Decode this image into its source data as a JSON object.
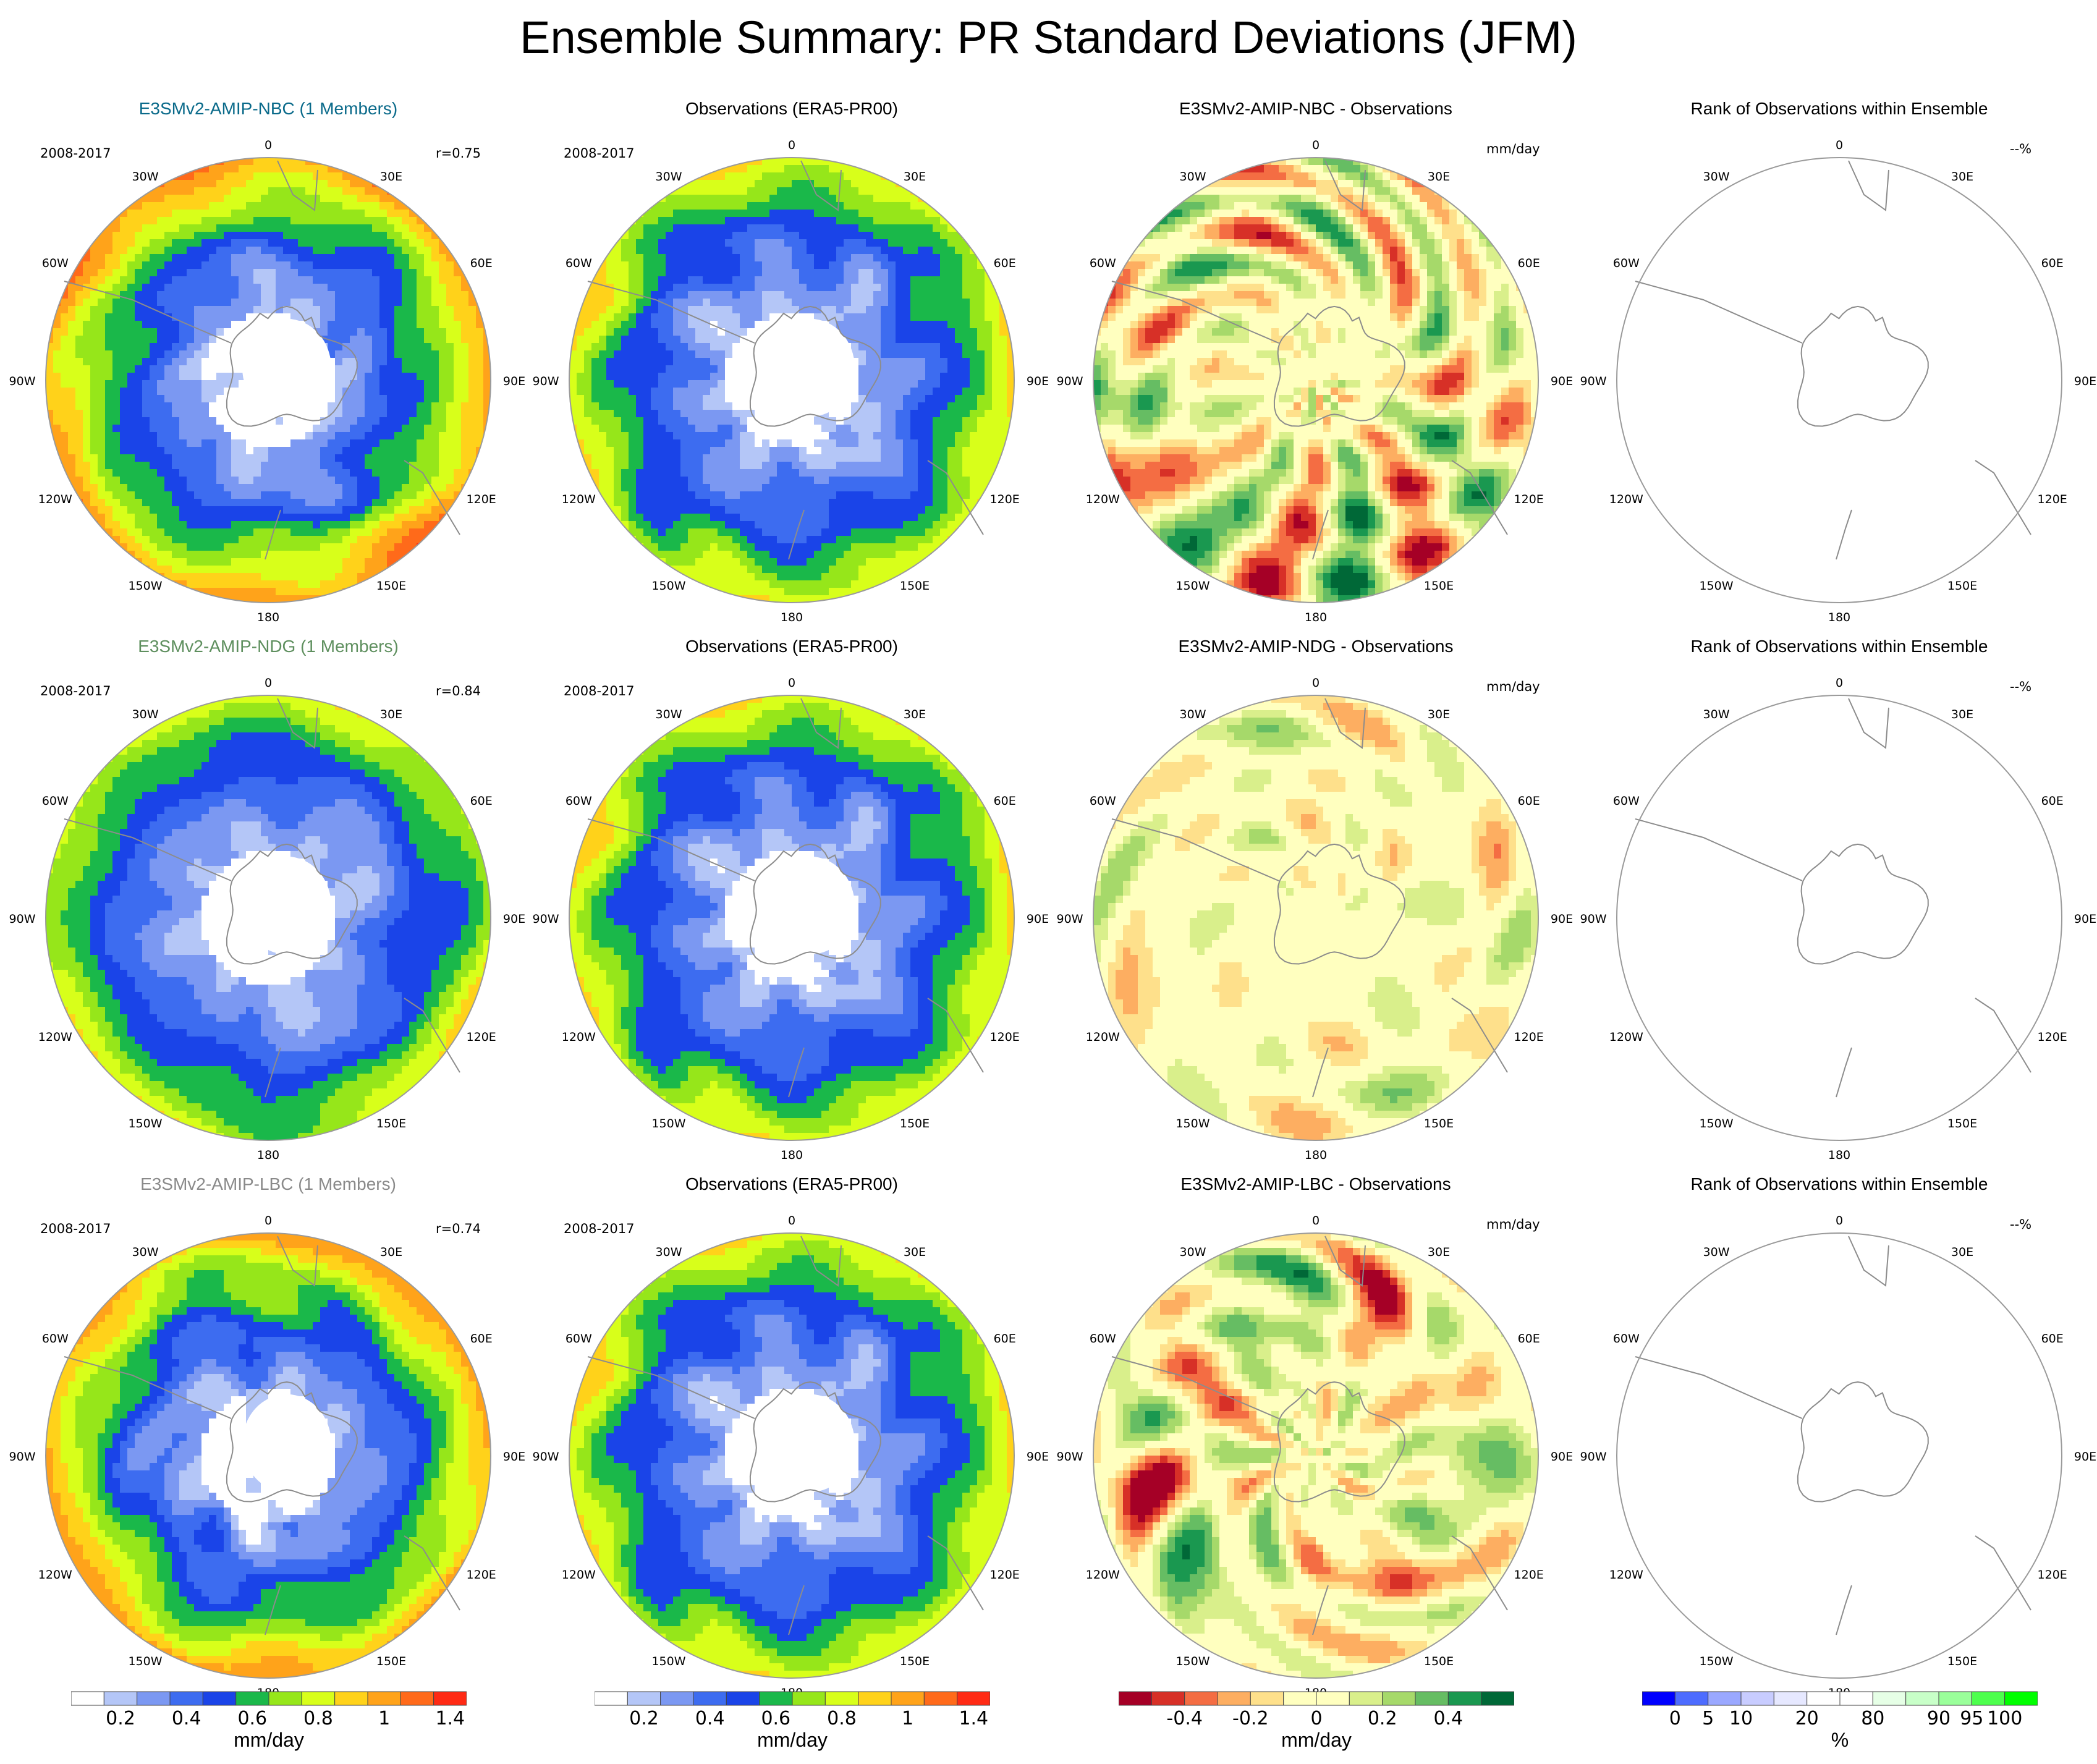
{
  "title": "Ensemble Summary: PR Standard Deviations (JFM)",
  "colors": {
    "model_title": [
      "#0a6a8a",
      "#5e8f5e",
      "#8a8a8a"
    ],
    "std_levels": [
      "#ffffff",
      "#b4c6f7",
      "#7b98f2",
      "#3d6cf0",
      "#1a44e8",
      "#1ab84a",
      "#96e61a",
      "#d8ff1a",
      "#ffd21a",
      "#ffa31a",
      "#ff6a1a",
      "#ff2a14"
    ],
    "diff_levels": [
      "#a50026",
      "#d73027",
      "#f46d43",
      "#fdae61",
      "#fee08b",
      "#ffffbf",
      "#ffffbf",
      "#d9ef8b",
      "#a6d96a",
      "#66bd63",
      "#1a9850",
      "#006837"
    ],
    "rank_levels": [
      "#0000ff",
      "#4d6cff",
      "#9aa8ff",
      "#c8ccff",
      "#e6e8ff",
      "#ffffff",
      "#ffffff",
      "#e6ffe6",
      "#c8ffc8",
      "#9aff9a",
      "#4dff4d",
      "#00ff00"
    ]
  },
  "chart_data": [
    {
      "type": "heatmap",
      "row": 0,
      "col": 0,
      "title": "E3SMv2-AMIP-NBC (1 Members)",
      "period": "2008-2017",
      "corr": "r=0.75",
      "units": "",
      "projection": "south-polar-stereographic",
      "fill": "std",
      "intensity": 0.95,
      "seed": 11
    },
    {
      "type": "heatmap",
      "row": 0,
      "col": 1,
      "title": "Observations (ERA5-PR00)",
      "period": "2008-2017",
      "corr": "",
      "units": "",
      "projection": "south-polar-stereographic",
      "fill": "std",
      "intensity": 0.75,
      "seed": 23
    },
    {
      "type": "heatmap",
      "row": 0,
      "col": 2,
      "title": "E3SMv2-AMIP-NBC - Observations",
      "period": "",
      "corr": "",
      "units": "mm/day",
      "projection": "south-polar-stereographic",
      "fill": "diff",
      "intensity": 0.6,
      "seed": 37
    },
    {
      "type": "heatmap",
      "row": 0,
      "col": 3,
      "title": "Rank of Observations within Ensemble",
      "period": "",
      "corr": "",
      "units": "--%",
      "projection": "south-polar-stereographic",
      "fill": "none",
      "intensity": 0,
      "seed": 0
    },
    {
      "type": "heatmap",
      "row": 1,
      "col": 0,
      "title": "E3SMv2-AMIP-NDG (1 Members)",
      "period": "2008-2017",
      "corr": "r=0.84",
      "units": "",
      "projection": "south-polar-stereographic",
      "fill": "std",
      "intensity": 0.7,
      "seed": 41
    },
    {
      "type": "heatmap",
      "row": 1,
      "col": 1,
      "title": "Observations (ERA5-PR00)",
      "period": "2008-2017",
      "corr": "",
      "units": "",
      "projection": "south-polar-stereographic",
      "fill": "std",
      "intensity": 0.75,
      "seed": 23
    },
    {
      "type": "heatmap",
      "row": 1,
      "col": 2,
      "title": "E3SMv2-AMIP-NDG - Observations",
      "period": "",
      "corr": "",
      "units": "mm/day",
      "projection": "south-polar-stereographic",
      "fill": "diff",
      "intensity": 0.3,
      "seed": 53
    },
    {
      "type": "heatmap",
      "row": 1,
      "col": 3,
      "title": "Rank of Observations within Ensemble",
      "period": "",
      "corr": "",
      "units": "--%",
      "projection": "south-polar-stereographic",
      "fill": "none",
      "intensity": 0,
      "seed": 0
    },
    {
      "type": "heatmap",
      "row": 2,
      "col": 0,
      "title": "E3SMv2-AMIP-LBC (1 Members)",
      "period": "2008-2017",
      "corr": "r=0.74",
      "units": "",
      "projection": "south-polar-stereographic",
      "fill": "std",
      "intensity": 0.92,
      "seed": 67
    },
    {
      "type": "heatmap",
      "row": 2,
      "col": 1,
      "title": "Observations (ERA5-PR00)",
      "period": "2008-2017",
      "corr": "",
      "units": "",
      "projection": "south-polar-stereographic",
      "fill": "std",
      "intensity": 0.75,
      "seed": 23
    },
    {
      "type": "heatmap",
      "row": 2,
      "col": 2,
      "title": "E3SMv2-AMIP-LBC - Observations",
      "period": "",
      "corr": "",
      "units": "mm/day",
      "projection": "south-polar-stereographic",
      "fill": "diff",
      "intensity": 0.65,
      "seed": 79
    },
    {
      "type": "heatmap",
      "row": 2,
      "col": 3,
      "title": "Rank of Observations within Ensemble",
      "period": "",
      "corr": "",
      "units": "--%",
      "projection": "south-polar-stereographic",
      "fill": "none",
      "intensity": 0,
      "seed": 0
    }
  ],
  "lon_labels": [
    "0",
    "30E",
    "60E",
    "90E",
    "120E",
    "150E",
    "180",
    "150W",
    "120W",
    "90W",
    "60W",
    "30W"
  ],
  "legends": [
    {
      "id": "std-a",
      "colors": "std_levels",
      "labels": [
        "0.2",
        "0.4",
        "0.6",
        "0.8",
        "1",
        "1.4"
      ],
      "label_slots": [
        1.5,
        3.5,
        5.5,
        7.5,
        9.5,
        11.5
      ],
      "unit": "mm/day"
    },
    {
      "id": "std-b",
      "colors": "std_levels",
      "labels": [
        "0.2",
        "0.4",
        "0.6",
        "0.8",
        "1",
        "1.4"
      ],
      "label_slots": [
        1.5,
        3.5,
        5.5,
        7.5,
        9.5,
        11.5
      ],
      "unit": "mm/day"
    },
    {
      "id": "diff",
      "colors": "diff_levels",
      "labels": [
        "-0.4",
        "-0.2",
        "0",
        "0.2",
        "0.4"
      ],
      "label_slots": [
        2,
        4,
        6,
        8,
        10
      ],
      "unit": "mm/day"
    },
    {
      "id": "rank",
      "colors": "rank_levels",
      "labels": [
        "0",
        "5",
        "10",
        "20",
        "80",
        "90",
        "95",
        "100"
      ],
      "label_slots": [
        1,
        2,
        3,
        5,
        7,
        9,
        10,
        11
      ],
      "unit": "%"
    }
  ]
}
